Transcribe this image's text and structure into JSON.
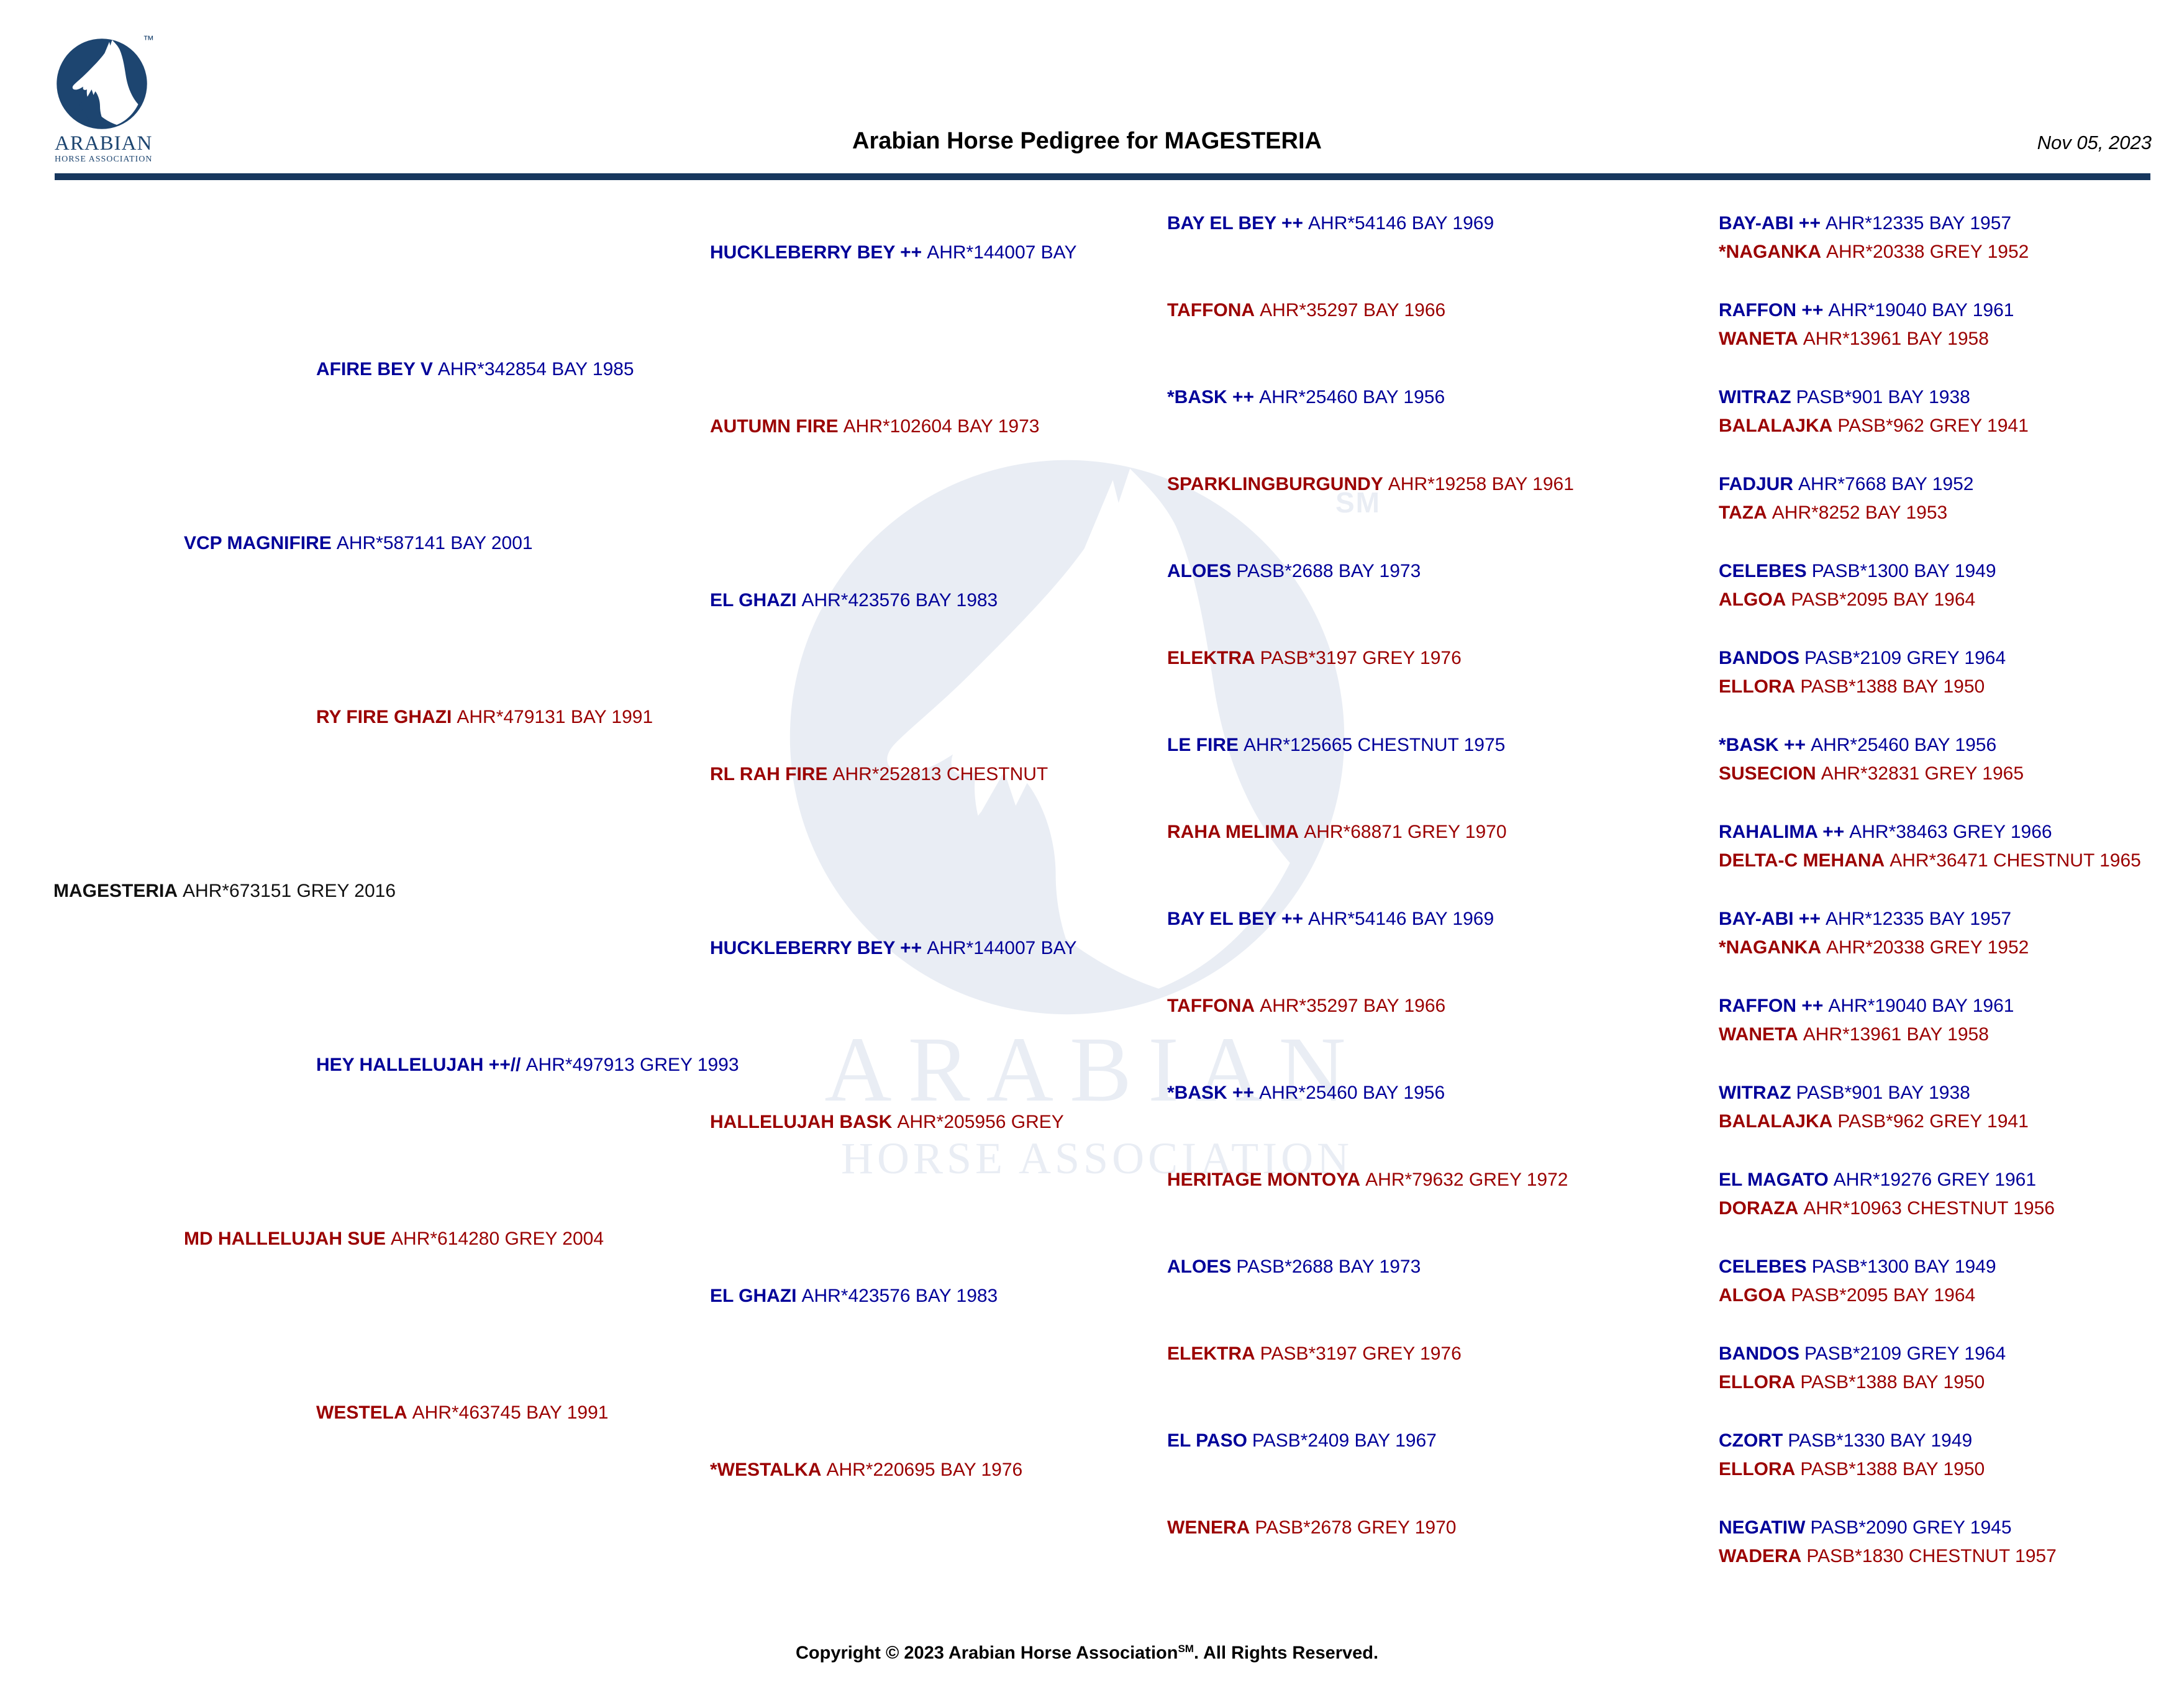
{
  "header": {
    "logo": {
      "line1": "ARABIAN",
      "line2": "HORSE ASSOCIATION",
      "mark": "™"
    },
    "title": "Arabian Horse Pedigree for MAGESTERIA",
    "date": "Nov 05, 2023"
  },
  "watermark": {
    "line1": "ARABIAN",
    "line2": "HORSE ASSOCIATION",
    "mark": "SM"
  },
  "footer": {
    "prefix": "Copyright © 2023 Arabian Horse Association",
    "mark": "SM",
    "suffix": ".  All Rights Reserved."
  },
  "colors": {
    "sire": "#000099",
    "dam": "#9B0000",
    "subject": "#111111",
    "rule": "#17375E",
    "logo": "#1D4570",
    "watermark": "#E9EDF4"
  },
  "pedigree": {
    "subject": {
      "name": "MAGESTERIA",
      "info": "AHR*673151 GREY 2016"
    },
    "gen1": [
      {
        "name": "VCP MAGNIFIRE",
        "info": "AHR*587141 BAY 2001"
      },
      {
        "name": "MD HALLELUJAH SUE",
        "info": "AHR*614280 GREY 2004"
      }
    ],
    "gen2": [
      {
        "name": "AFIRE BEY V",
        "info": "AHR*342854 BAY 1985"
      },
      {
        "name": "RY FIRE GHAZI",
        "info": "AHR*479131 BAY 1991"
      },
      {
        "name": "HEY HALLELUJAH ++//",
        "info": "AHR*497913 GREY 1993"
      },
      {
        "name": "WESTELA",
        "info": "AHR*463745 BAY 1991"
      }
    ],
    "gen3": [
      {
        "name": "HUCKLEBERRY BEY ++",
        "info": "AHR*144007 BAY"
      },
      {
        "name": "AUTUMN FIRE",
        "info": "AHR*102604 BAY 1973"
      },
      {
        "name": "EL GHAZI",
        "info": "AHR*423576 BAY 1983"
      },
      {
        "name": "RL RAH FIRE",
        "info": "AHR*252813 CHESTNUT"
      },
      {
        "name": "HUCKLEBERRY BEY ++",
        "info": "AHR*144007 BAY"
      },
      {
        "name": "HALLELUJAH BASK",
        "info": "AHR*205956 GREY"
      },
      {
        "name": "EL GHAZI",
        "info": "AHR*423576 BAY 1983"
      },
      {
        "name": "*WESTALKA",
        "info": "AHR*220695 BAY 1976"
      }
    ],
    "gen4": [
      {
        "name": "BAY EL BEY ++",
        "info": "AHR*54146 BAY 1969"
      },
      {
        "name": "TAFFONA",
        "info": "AHR*35297 BAY 1966"
      },
      {
        "name": "*BASK ++",
        "info": "AHR*25460 BAY 1956"
      },
      {
        "name": "SPARKLINGBURGUNDY",
        "info": "AHR*19258 BAY 1961"
      },
      {
        "name": "ALOES",
        "info": "PASB*2688 BAY 1973"
      },
      {
        "name": "ELEKTRA",
        "info": "PASB*3197 GREY 1976"
      },
      {
        "name": "LE FIRE",
        "info": "AHR*125665 CHESTNUT 1975"
      },
      {
        "name": "RAHA MELIMA",
        "info": "AHR*68871 GREY 1970"
      },
      {
        "name": "BAY EL BEY ++",
        "info": "AHR*54146 BAY 1969"
      },
      {
        "name": "TAFFONA",
        "info": "AHR*35297 BAY 1966"
      },
      {
        "name": "*BASK ++",
        "info": "AHR*25460 BAY 1956"
      },
      {
        "name": "HERITAGE MONTOYA",
        "info": "AHR*79632 GREY 1972"
      },
      {
        "name": "ALOES",
        "info": "PASB*2688 BAY 1973"
      },
      {
        "name": "ELEKTRA",
        "info": "PASB*3197 GREY 1976"
      },
      {
        "name": "EL PASO",
        "info": "PASB*2409 BAY 1967"
      },
      {
        "name": "WENERA",
        "info": "PASB*2678 GREY 1970"
      }
    ],
    "gen5": [
      {
        "name": "BAY-ABI ++",
        "info": "AHR*12335 BAY 1957"
      },
      {
        "name": "*NAGANKA",
        "info": "AHR*20338 GREY 1952"
      },
      {
        "name": "RAFFON ++",
        "info": "AHR*19040 BAY 1961"
      },
      {
        "name": "WANETA",
        "info": "AHR*13961 BAY 1958"
      },
      {
        "name": "WITRAZ",
        "info": "PASB*901 BAY 1938"
      },
      {
        "name": "BALALAJKA",
        "info": "PASB*962 GREY 1941"
      },
      {
        "name": "FADJUR",
        "info": "AHR*7668 BAY 1952"
      },
      {
        "name": "TAZA",
        "info": "AHR*8252 BAY 1953"
      },
      {
        "name": "CELEBES",
        "info": "PASB*1300 BAY 1949"
      },
      {
        "name": "ALGOA",
        "info": "PASB*2095 BAY 1964"
      },
      {
        "name": "BANDOS",
        "info": "PASB*2109 GREY 1964"
      },
      {
        "name": "ELLORA",
        "info": "PASB*1388 BAY 1950"
      },
      {
        "name": "*BASK ++",
        "info": "AHR*25460 BAY 1956"
      },
      {
        "name": "SUSECION",
        "info": "AHR*32831 GREY 1965"
      },
      {
        "name": "RAHALIMA ++",
        "info": "AHR*38463 GREY 1966"
      },
      {
        "name": "DELTA-C MEHANA",
        "info": "AHR*36471 CHESTNUT 1965"
      },
      {
        "name": "BAY-ABI ++",
        "info": "AHR*12335 BAY 1957"
      },
      {
        "name": "*NAGANKA",
        "info": "AHR*20338 GREY 1952"
      },
      {
        "name": "RAFFON ++",
        "info": "AHR*19040 BAY 1961"
      },
      {
        "name": "WANETA",
        "info": "AHR*13961 BAY 1958"
      },
      {
        "name": "WITRAZ",
        "info": "PASB*901 BAY 1938"
      },
      {
        "name": "BALALAJKA",
        "info": "PASB*962 GREY 1941"
      },
      {
        "name": "EL MAGATO",
        "info": "AHR*19276 GREY 1961"
      },
      {
        "name": "DORAZA",
        "info": "AHR*10963 CHESTNUT 1956"
      },
      {
        "name": "CELEBES",
        "info": "PASB*1300 BAY 1949"
      },
      {
        "name": "ALGOA",
        "info": "PASB*2095 BAY 1964"
      },
      {
        "name": "BANDOS",
        "info": "PASB*2109 GREY 1964"
      },
      {
        "name": "ELLORA",
        "info": "PASB*1388 BAY 1950"
      },
      {
        "name": "CZORT",
        "info": "PASB*1330 BAY 1949"
      },
      {
        "name": "ELLORA",
        "info": "PASB*1388 BAY 1950"
      },
      {
        "name": "NEGATIW",
        "info": "PASB*2090 GREY 1945"
      },
      {
        "name": "WADERA",
        "info": "PASB*1830 CHESTNUT 1957"
      }
    ]
  }
}
